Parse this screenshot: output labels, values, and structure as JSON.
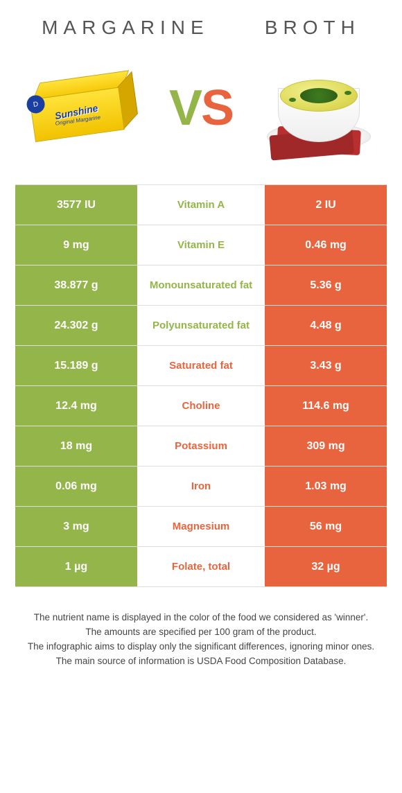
{
  "colors": {
    "left": "#94b54a",
    "right": "#e8643e",
    "vs_left": "#94b54a",
    "vs_right": "#e8643e"
  },
  "header": {
    "left": "Margarine",
    "right": "Broth",
    "vs": "VS"
  },
  "table": {
    "rows": [
      {
        "left": "3577 IU",
        "mid": "Vitamin A",
        "right": "2 IU",
        "winner": "left"
      },
      {
        "left": "9 mg",
        "mid": "Vitamin E",
        "right": "0.46 mg",
        "winner": "left"
      },
      {
        "left": "38.877 g",
        "mid": "Monounsaturated fat",
        "right": "5.36 g",
        "winner": "left"
      },
      {
        "left": "24.302 g",
        "mid": "Polyunsaturated fat",
        "right": "4.48 g",
        "winner": "left"
      },
      {
        "left": "15.189 g",
        "mid": "Saturated fat",
        "right": "3.43 g",
        "winner": "right"
      },
      {
        "left": "12.4 mg",
        "mid": "Choline",
        "right": "114.6 mg",
        "winner": "right"
      },
      {
        "left": "18 mg",
        "mid": "Potassium",
        "right": "309 mg",
        "winner": "right"
      },
      {
        "left": "0.06 mg",
        "mid": "Iron",
        "right": "1.03 mg",
        "winner": "right"
      },
      {
        "left": "3 mg",
        "mid": "Magnesium",
        "right": "56 mg",
        "winner": "right"
      },
      {
        "left": "1 µg",
        "mid": "Folate, total",
        "right": "32 µg",
        "winner": "right"
      }
    ]
  },
  "footnotes": [
    "The nutrient name is displayed in the color of the food we considered as 'winner'.",
    "The amounts are specified per 100 gram of the product.",
    "The infographic aims to display only the significant differences, ignoring minor ones.",
    "The main source of information is USDA Food Composition Database."
  ]
}
